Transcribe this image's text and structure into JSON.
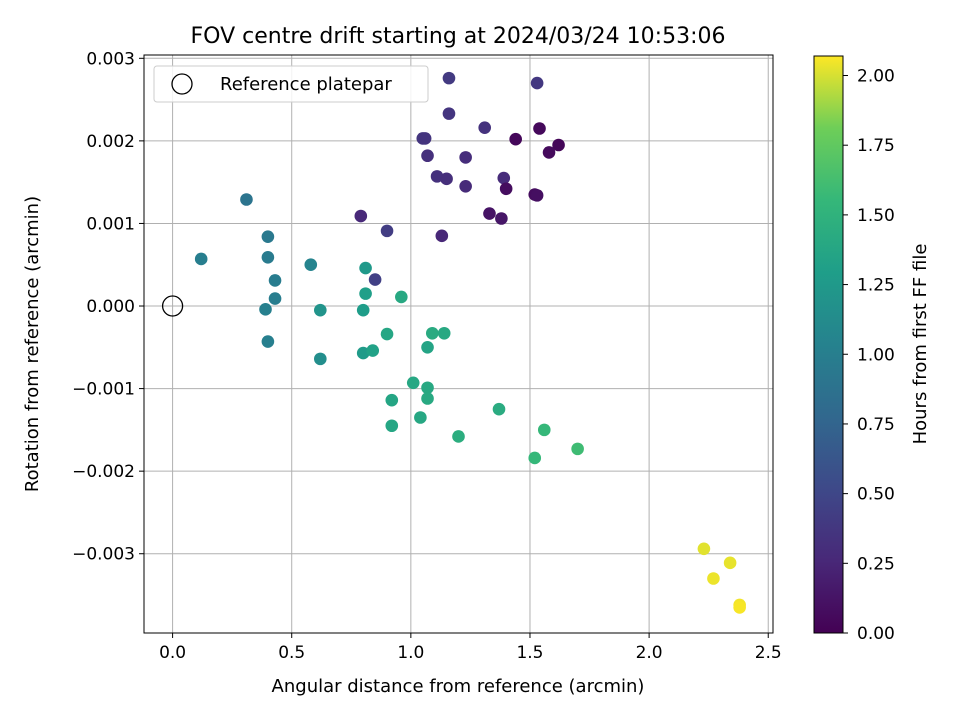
{
  "chart_data": {
    "type": "scatter",
    "title": "FOV centre drift starting at 2024/03/24 10:53:06",
    "xlabel": "Angular distance from reference (arcmin)",
    "ylabel": "Rotation from reference (arcmin)",
    "colorbar_label": "Hours from first FF file",
    "xlim": [
      -0.12,
      2.52
    ],
    "ylim": [
      -0.00396,
      0.00304
    ],
    "xticks": [
      0.0,
      0.5,
      1.0,
      1.5,
      2.0,
      2.5
    ],
    "xtick_labels": [
      "0.0",
      "0.5",
      "1.0",
      "1.5",
      "2.0",
      "2.5"
    ],
    "yticks": [
      0.003,
      0.002,
      0.001,
      0.0,
      -0.001,
      -0.002,
      -0.003
    ],
    "ytick_labels": [
      "0.003",
      "0.002",
      "0.001",
      "0.000",
      "−0.001",
      "−0.002",
      "−0.003"
    ],
    "colorbar_range": [
      0.0,
      2.07
    ],
    "colorbar_ticks": [
      0.0,
      0.25,
      0.5,
      0.75,
      1.0,
      1.25,
      1.5,
      1.75,
      2.0
    ],
    "colorbar_tick_labels": [
      "0.00",
      "0.25",
      "0.50",
      "0.75",
      "1.00",
      "1.25",
      "1.50",
      "1.75",
      "2.00"
    ],
    "colormap": "viridis",
    "grid": true,
    "legend": {
      "location": "upper-left",
      "entries": [
        "Reference platepar"
      ]
    },
    "reference_point": {
      "x": 0.0,
      "y": 0.0
    },
    "points": [
      {
        "x": 1.16,
        "y": 0.00276,
        "h": 0.4
      },
      {
        "x": 1.53,
        "y": 0.0027,
        "h": 0.38
      },
      {
        "x": 1.16,
        "y": 0.00233,
        "h": 0.36
      },
      {
        "x": 1.31,
        "y": 0.00216,
        "h": 0.34
      },
      {
        "x": 1.54,
        "y": 0.00215,
        "h": 0.05
      },
      {
        "x": 1.05,
        "y": 0.00203,
        "h": 0.37
      },
      {
        "x": 1.06,
        "y": 0.00203,
        "h": 0.35
      },
      {
        "x": 1.44,
        "y": 0.00202,
        "h": 0.04
      },
      {
        "x": 1.62,
        "y": 0.00195,
        "h": 0.03
      },
      {
        "x": 1.58,
        "y": 0.00186,
        "h": 0.06
      },
      {
        "x": 1.07,
        "y": 0.00182,
        "h": 0.32
      },
      {
        "x": 1.23,
        "y": 0.0018,
        "h": 0.3
      },
      {
        "x": 1.11,
        "y": 0.00157,
        "h": 0.33
      },
      {
        "x": 1.15,
        "y": 0.00154,
        "h": 0.31
      },
      {
        "x": 1.39,
        "y": 0.00155,
        "h": 0.29
      },
      {
        "x": 1.23,
        "y": 0.00145,
        "h": 0.28
      },
      {
        "x": 1.4,
        "y": 0.00142,
        "h": 0.08
      },
      {
        "x": 1.52,
        "y": 0.00135,
        "h": 0.07
      },
      {
        "x": 1.53,
        "y": 0.00134,
        "h": 0.09
      },
      {
        "x": 1.33,
        "y": 0.00112,
        "h": 0.12
      },
      {
        "x": 1.38,
        "y": 0.00106,
        "h": 0.14
      },
      {
        "x": 0.79,
        "y": 0.00109,
        "h": 0.27
      },
      {
        "x": 0.9,
        "y": 0.00091,
        "h": 0.42
      },
      {
        "x": 1.13,
        "y": 0.00085,
        "h": 0.26
      },
      {
        "x": 0.85,
        "y": 0.00032,
        "h": 0.45
      },
      {
        "x": 0.31,
        "y": 0.00129,
        "h": 0.9
      },
      {
        "x": 0.4,
        "y": 0.00084,
        "h": 0.95
      },
      {
        "x": 0.4,
        "y": 0.00059,
        "h": 0.97
      },
      {
        "x": 0.12,
        "y": 0.00057,
        "h": 1.0
      },
      {
        "x": 0.58,
        "y": 0.0005,
        "h": 1.05
      },
      {
        "x": 0.43,
        "y": 0.00031,
        "h": 0.98
      },
      {
        "x": 0.43,
        "y": 9e-05,
        "h": 0.99
      },
      {
        "x": 0.39,
        "y": -4e-05,
        "h": 1.02
      },
      {
        "x": 0.62,
        "y": -5e-05,
        "h": 1.2
      },
      {
        "x": 0.4,
        "y": -0.00043,
        "h": 1.01
      },
      {
        "x": 0.62,
        "y": -0.00064,
        "h": 1.15
      },
      {
        "x": 0.81,
        "y": 0.00046,
        "h": 1.25
      },
      {
        "x": 0.81,
        "y": 0.00015,
        "h": 1.3
      },
      {
        "x": 0.8,
        "y": -5e-05,
        "h": 1.28
      },
      {
        "x": 0.96,
        "y": 0.00011,
        "h": 1.4
      },
      {
        "x": 0.9,
        "y": -0.00034,
        "h": 1.38
      },
      {
        "x": 1.09,
        "y": -0.00033,
        "h": 1.42
      },
      {
        "x": 1.14,
        "y": -0.00033,
        "h": 1.4
      },
      {
        "x": 0.8,
        "y": -0.00057,
        "h": 1.27
      },
      {
        "x": 0.84,
        "y": -0.00054,
        "h": 1.33
      },
      {
        "x": 1.07,
        "y": -0.0005,
        "h": 1.36
      },
      {
        "x": 1.01,
        "y": -0.00093,
        "h": 1.39
      },
      {
        "x": 1.07,
        "y": -0.00099,
        "h": 1.4
      },
      {
        "x": 1.07,
        "y": -0.00112,
        "h": 1.41
      },
      {
        "x": 0.92,
        "y": -0.00114,
        "h": 1.37
      },
      {
        "x": 1.37,
        "y": -0.00125,
        "h": 1.43
      },
      {
        "x": 1.04,
        "y": -0.00135,
        "h": 1.39
      },
      {
        "x": 0.92,
        "y": -0.00145,
        "h": 1.38
      },
      {
        "x": 1.2,
        "y": -0.00158,
        "h": 1.45
      },
      {
        "x": 1.56,
        "y": -0.0015,
        "h": 1.55
      },
      {
        "x": 1.52,
        "y": -0.00184,
        "h": 1.55
      },
      {
        "x": 1.7,
        "y": -0.00173,
        "h": 1.6
      },
      {
        "x": 2.23,
        "y": -0.00294,
        "h": 2.02
      },
      {
        "x": 2.34,
        "y": -0.00311,
        "h": 2.03
      },
      {
        "x": 2.27,
        "y": -0.0033,
        "h": 2.04
      },
      {
        "x": 2.38,
        "y": -0.00362,
        "h": 2.05
      },
      {
        "x": 2.38,
        "y": -0.00365,
        "h": 2.06
      }
    ]
  }
}
